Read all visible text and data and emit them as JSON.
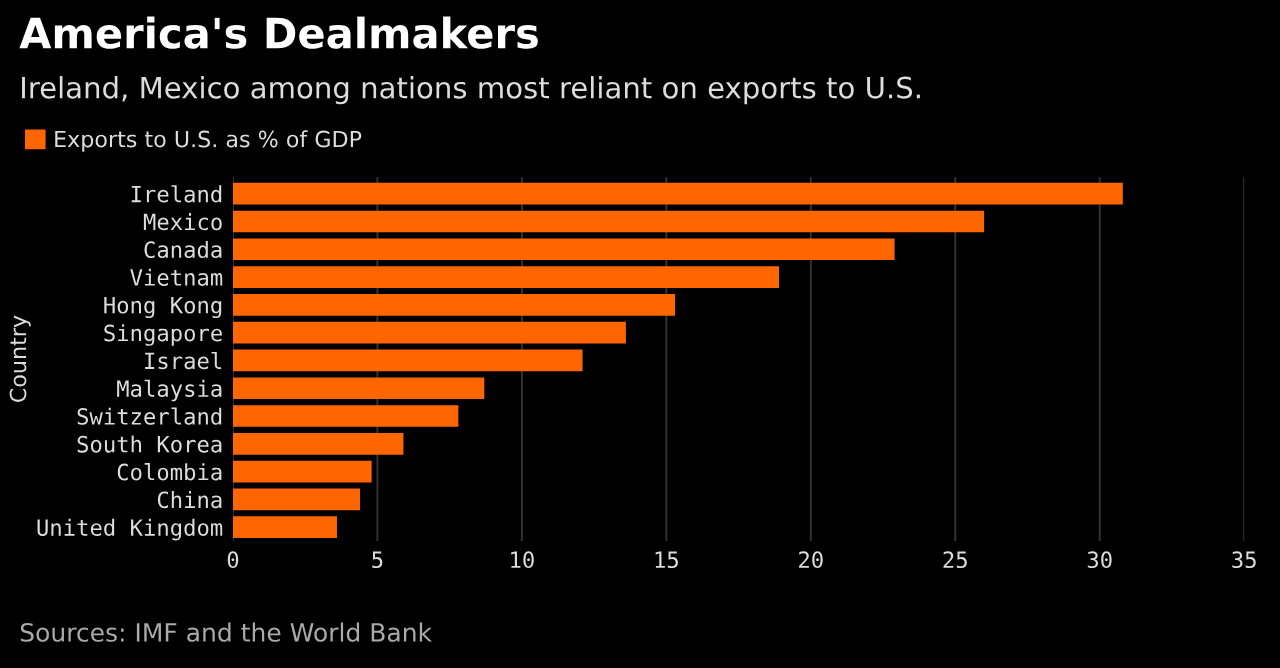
{
  "chart_data": {
    "type": "bar",
    "orientation": "horizontal",
    "title": "America's Dealmakers",
    "subtitle": "Ireland, Mexico among nations most reliant on exports to U.S.",
    "ylabel": "Country",
    "categories": [
      "Ireland",
      "Mexico",
      "Canada",
      "Vietnam",
      "Hong Kong",
      "Singapore",
      "Israel",
      "Malaysia",
      "Switzerland",
      "South Korea",
      "Colombia",
      "China",
      "United Kingdom"
    ],
    "series": [
      {
        "name": "Exports to U.S. as % of GDP",
        "color": "#ff6600",
        "values": [
          30.8,
          26.0,
          22.9,
          18.9,
          15.3,
          13.6,
          12.1,
          8.7,
          7.8,
          5.9,
          4.8,
          4.4,
          3.6
        ]
      }
    ],
    "xlim": [
      0,
      35
    ],
    "xticks": [
      0,
      5,
      10,
      15,
      20,
      25,
      30,
      35
    ],
    "grid": "x",
    "legend": "top left",
    "annotations": [
      "Sources: IMF and the World Bank"
    ]
  }
}
